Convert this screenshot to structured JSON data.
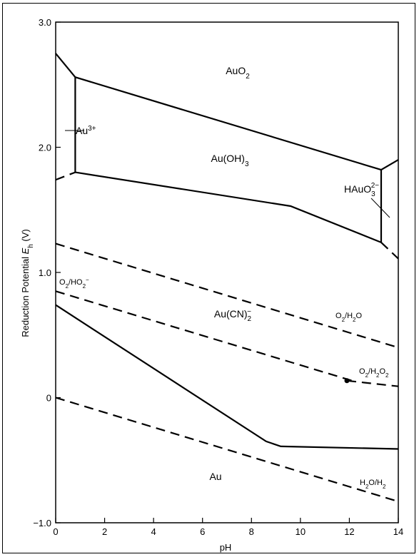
{
  "chart_data": {
    "type": "line",
    "title": "",
    "xlabel": "pH",
    "ylabel": "Reduction Potential Eh (V)",
    "ylabel_main": "Reduction Potential ",
    "ylabel_symbol": "E",
    "ylabel_sub": "h",
    "ylabel_unit": " (V)",
    "xlim": [
      0,
      14
    ],
    "ylim": [
      -1.0,
      3.0
    ],
    "x_ticks": [
      0,
      2,
      4,
      6,
      8,
      10,
      12,
      14
    ],
    "x_tick_labels": [
      "0",
      "2",
      "4",
      "6",
      "8",
      "10",
      "12",
      "14"
    ],
    "y_ticks": [
      -1.0,
      0,
      1.0,
      2.0,
      3.0
    ],
    "y_tick_labels": [
      "−1.0",
      "0",
      "1.0",
      "2.0",
      "3.0"
    ],
    "grid": false,
    "boundaries": [
      {
        "id": "au3-top",
        "style": "solid",
        "x": [
          0,
          0.8
        ],
        "y": [
          2.75,
          2.56
        ]
      },
      {
        "id": "auo2-au-oh3",
        "style": "solid",
        "x": [
          0.8,
          13.3
        ],
        "y": [
          2.56,
          1.82
        ]
      },
      {
        "id": "au3-au-oh3-vertical",
        "style": "solid",
        "x": [
          0.8,
          0.8
        ],
        "y": [
          2.56,
          1.8
        ]
      },
      {
        "id": "au3-au-bottom",
        "style": "dashed",
        "x": [
          0,
          0.8
        ],
        "y": [
          1.74,
          1.8
        ]
      },
      {
        "id": "au-oh3-au",
        "style": "solid",
        "x": [
          0.8,
          9.6,
          13.3
        ],
        "y": [
          1.8,
          1.53,
          1.24
        ]
      },
      {
        "id": "hauo3-vertical",
        "style": "solid",
        "x": [
          13.3,
          13.3
        ],
        "y": [
          1.82,
          1.24
        ]
      },
      {
        "id": "hauo3-top",
        "style": "solid",
        "x": [
          13.3,
          14
        ],
        "y": [
          1.82,
          1.9
        ]
      },
      {
        "id": "hauo3-bottom",
        "style": "dashed",
        "x": [
          13.3,
          14
        ],
        "y": [
          1.24,
          1.11
        ]
      },
      {
        "id": "au-cn2-au",
        "style": "solid",
        "x": [
          0,
          8.6,
          9.2,
          14
        ],
        "y": [
          0.74,
          -0.35,
          -0.39,
          -0.41
        ]
      }
    ],
    "series": [
      {
        "name": "O2/H2O",
        "style": "dashed",
        "x": [
          0,
          14
        ],
        "y": [
          1.23,
          0.4
        ]
      },
      {
        "name": "O2/HO2−",
        "style": "dashed",
        "x": [
          0,
          12.2
        ],
        "y": [
          0.85,
          0.13
        ]
      },
      {
        "name": "O2/H2O2",
        "style": "dashed",
        "x": [
          11.9,
          14
        ],
        "y": [
          0.135,
          0.09
        ]
      },
      {
        "name": "H2O/H2",
        "style": "dashed",
        "x": [
          0,
          14
        ],
        "y": [
          0.0,
          -0.83
        ]
      }
    ],
    "points": [
      {
        "x": 11.9,
        "y": 0.135
      }
    ],
    "regions": [
      {
        "id": "auo2",
        "label": "AuO",
        "sub": "2",
        "x": 7.0,
        "y": 2.65
      },
      {
        "id": "au-oh3",
        "label": "Au(OH)",
        "sub": "3",
        "x": 7.0,
        "y": 1.98
      },
      {
        "id": "au-cn2",
        "label": "Au(CN)",
        "sub": "2",
        "sup": "−",
        "x": 7.0,
        "y": 0.62
      },
      {
        "id": "au",
        "label": "Au",
        "x": 6.5,
        "y": -0.62
      }
    ],
    "annotations": {
      "au3": {
        "label": "Au",
        "sup": "3+"
      },
      "hauo3": {
        "label": "HAuO",
        "sub": "3",
        "sup": "2−"
      },
      "o2-ho2": {
        "label": "O",
        "sub1": "2",
        "mid": "/HO",
        "sub2": "2",
        "sup2": "−"
      },
      "o2-h2o": {
        "label": "O",
        "sub1": "2",
        "mid": "/H",
        "sub2": "2",
        "end": "O"
      },
      "o2-h2o2": {
        "label": "O",
        "sub1": "2",
        "mid": "/H",
        "sub2": "2",
        "end": "O",
        "sub3": "2"
      },
      "h2o-h2": {
        "label": "H",
        "sub1": "2",
        "mid": "O/H",
        "sub2": "2"
      }
    }
  }
}
